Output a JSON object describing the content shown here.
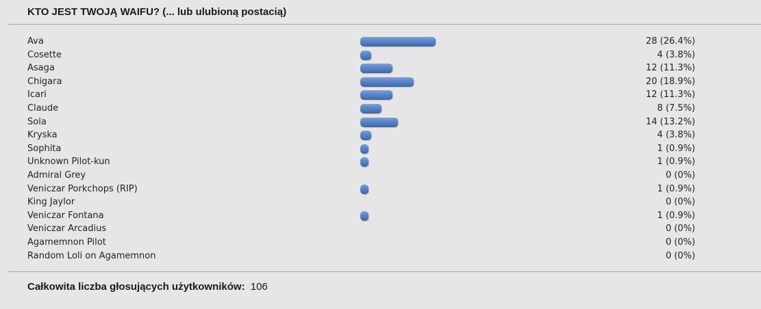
{
  "poll": {
    "title": "KTO JEST TWOJĄ WAIFU? (... lub ulubioną postacią)",
    "options": [
      {
        "label": "Ava",
        "votes": 28,
        "percent": 26.4,
        "count_text": "28 (26.4%)"
      },
      {
        "label": "Cosette",
        "votes": 4,
        "percent": 3.8,
        "count_text": "4 (3.8%)"
      },
      {
        "label": "Asaga",
        "votes": 12,
        "percent": 11.3,
        "count_text": "12 (11.3%)"
      },
      {
        "label": "Chigara",
        "votes": 20,
        "percent": 18.9,
        "count_text": "20 (18.9%)"
      },
      {
        "label": "Icari",
        "votes": 12,
        "percent": 11.3,
        "count_text": "12 (11.3%)"
      },
      {
        "label": "Claude",
        "votes": 8,
        "percent": 7.5,
        "count_text": "8 (7.5%)"
      },
      {
        "label": "Sola",
        "votes": 14,
        "percent": 13.2,
        "count_text": "14 (13.2%)"
      },
      {
        "label": "Kryska",
        "votes": 4,
        "percent": 3.8,
        "count_text": "4 (3.8%)"
      },
      {
        "label": "Sophita",
        "votes": 1,
        "percent": 0.9,
        "count_text": "1 (0.9%)"
      },
      {
        "label": "Unknown Pilot-kun",
        "votes": 1,
        "percent": 0.9,
        "count_text": "1 (0.9%)"
      },
      {
        "label": "Admiral Grey",
        "votes": 0,
        "percent": 0,
        "count_text": "0 (0%)"
      },
      {
        "label": "Veniczar Porkchops (RIP)",
        "votes": 1,
        "percent": 0.9,
        "count_text": "1 (0.9%)"
      },
      {
        "label": "King Jaylor",
        "votes": 0,
        "percent": 0,
        "count_text": "0 (0%)"
      },
      {
        "label": "Veniczar Fontana",
        "votes": 1,
        "percent": 0.9,
        "count_text": "1 (0.9%)"
      },
      {
        "label": "Veniczar Arcadius",
        "votes": 0,
        "percent": 0,
        "count_text": "0 (0%)"
      },
      {
        "label": "Agamemnon Pilot",
        "votes": 0,
        "percent": 0,
        "count_text": "0 (0%)"
      },
      {
        "label": "Random Loli on Agamemnon",
        "votes": 0,
        "percent": 0,
        "count_text": "0 (0%)"
      }
    ],
    "total_label": "Całkowita liczba głosujących użytkowników:",
    "total_value": "106"
  },
  "colors": {
    "background": "#e6e6e6",
    "bar": "#5b86c6",
    "rule": "#9ea7b8"
  }
}
